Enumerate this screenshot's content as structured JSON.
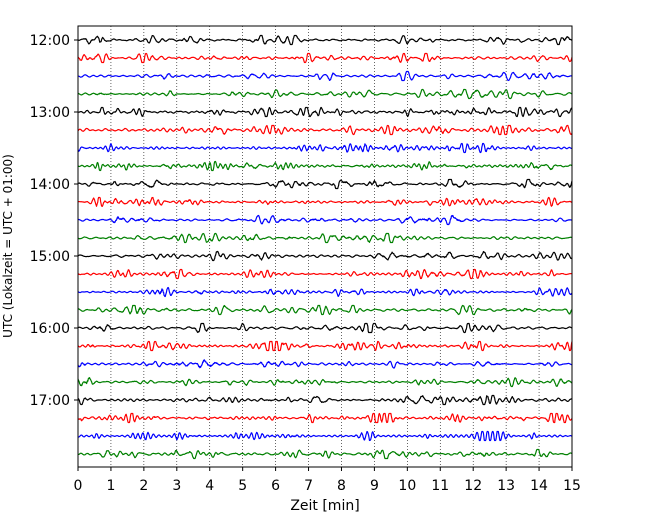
{
  "chart_data": {
    "type": "line",
    "xlabel": "Zeit  [min]",
    "ylabel": "UTC (Lokalzeit = UTC + 01:00)",
    "xlim": [
      0,
      15
    ],
    "xticks": [
      0,
      1,
      2,
      3,
      4,
      5,
      6,
      7,
      8,
      9,
      10,
      11,
      12,
      13,
      14,
      15
    ],
    "grid": "vertical-dotted",
    "y_tick_labels": [
      "12:00",
      "13:00",
      "14:00",
      "15:00",
      "16:00",
      "17:00"
    ],
    "trace_interval_minutes": 15,
    "trace_start": "12:00",
    "trace_count": 24,
    "trace_colors": [
      "#000000",
      "#ff0000",
      "#0000ff",
      "#008000"
    ],
    "annotations": []
  }
}
